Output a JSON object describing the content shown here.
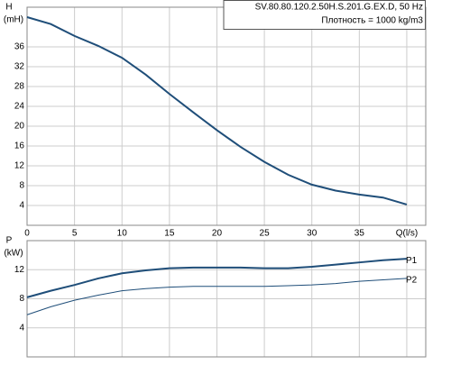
{
  "chart_data": [
    {
      "type": "line",
      "info": [
        "SV.80.80.120.2.50H.S.201.G.EX.D, 50 Hz",
        "Плотность = 1000 kg/m3"
      ],
      "y_label": "H",
      "y_unit": "(mH)",
      "x": [
        0,
        2.5,
        5,
        7.5,
        10,
        12.5,
        15,
        17.5,
        20,
        22.5,
        25,
        27.5,
        30,
        32.5,
        35,
        37.5,
        40
      ],
      "series": [
        {
          "color": "#1f4e79",
          "values": [
            42,
            40.6,
            38.2,
            36.2,
            33.8,
            30.4,
            26.5,
            22.8,
            19.2,
            15.8,
            12.8,
            10.2,
            8.2,
            7.0,
            6.2,
            5.6,
            4.2
          ]
        }
      ],
      "xlim": [
        0,
        42
      ],
      "xticks": [
        0,
        5,
        10,
        15,
        20,
        25,
        30,
        35,
        {
          "value": 40,
          "label": "Q(l/s)"
        }
      ],
      "ylim": [
        0,
        44
      ],
      "yticks": [
        4,
        8,
        12,
        16,
        20,
        24,
        28,
        32,
        36
      ],
      "grid": true
    },
    {
      "type": "line",
      "y_label": "P",
      "y_unit": "(kW)",
      "x": [
        0,
        2.5,
        5,
        7.5,
        10,
        12.5,
        15,
        17.5,
        20,
        22.5,
        25,
        27.5,
        30,
        32.5,
        35,
        37.5,
        40
      ],
      "series": [
        {
          "name": "P1",
          "color": "#1f4e79",
          "values": [
            8.2,
            9.1,
            9.9,
            10.8,
            11.5,
            11.9,
            12.2,
            12.3,
            12.3,
            12.3,
            12.2,
            12.2,
            12.4,
            12.7,
            13.0,
            13.3,
            13.5
          ]
        },
        {
          "name": "P2",
          "color": "#1f4e79",
          "values": [
            5.8,
            6.9,
            7.8,
            8.5,
            9.1,
            9.4,
            9.6,
            9.7,
            9.7,
            9.7,
            9.7,
            9.8,
            9.9,
            10.1,
            10.4,
            10.6,
            10.8
          ]
        }
      ],
      "xlim": [
        0,
        42
      ],
      "ylim": [
        0,
        16
      ],
      "yticks": [
        4,
        8,
        12
      ],
      "grid": true
    }
  ]
}
